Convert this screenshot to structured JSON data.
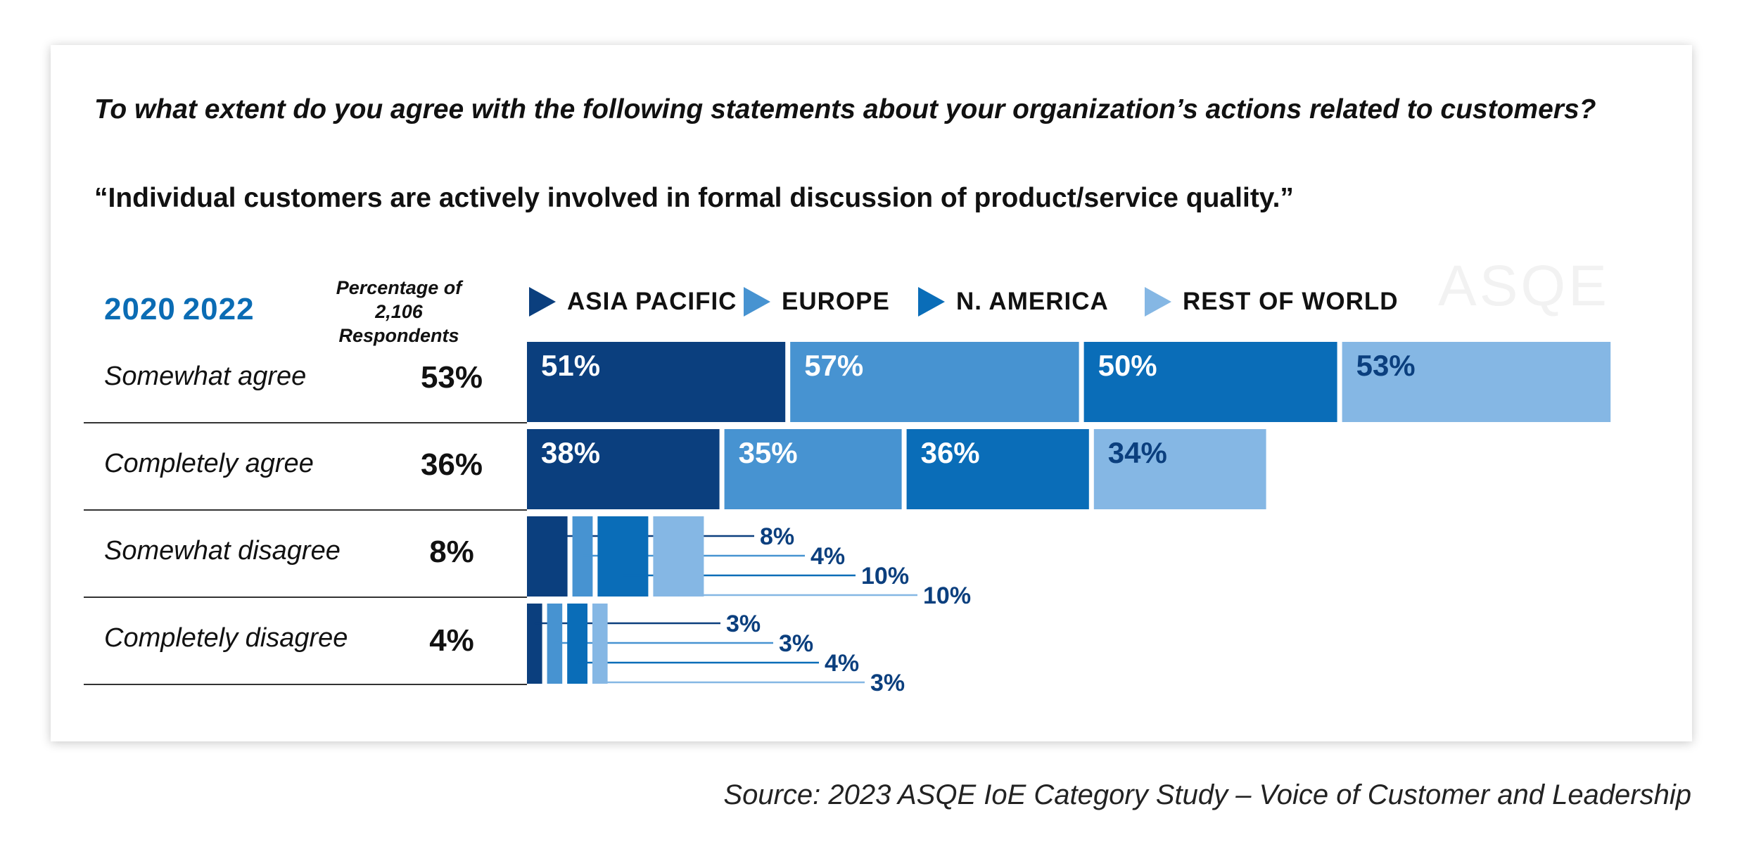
{
  "question": "To what extent do you agree with the following statements about your organization’s actions related to customers?",
  "statement": "“Individual customers are actively involved in formal discussion of product/service quality.”",
  "period_label": "2020 2022",
  "respondents_line1": "Percentage of",
  "respondents_line2": "2,106 Respondents",
  "watermark": "ASQE",
  "source": "Source: 2023 ASQE IoE Category Study – Voice of Customer and Leadership",
  "colors": {
    "asia_pacific": "#0b3f7e",
    "europe": "#4793d1",
    "n_america": "#0a6db8",
    "rest_of_world": "#85b7e4",
    "accent": "#0b6cb4"
  },
  "chart_data": {
    "type": "bar",
    "title": "To what extent do you agree with the following statements about your organization’s actions related to customers?",
    "subtitle": "“Individual customers are actively involved in formal discussion of product/service quality.”",
    "categories": [
      "Somewhat agree",
      "Completely agree",
      "Somewhat disagree",
      "Completely disagree"
    ],
    "totals": [
      "53%",
      "36%",
      "8%",
      "4%"
    ],
    "total_values": [
      53,
      36,
      8,
      4
    ],
    "series": [
      {
        "name": "ASIA PACIFIC",
        "values": [
          51,
          38,
          8,
          3
        ]
      },
      {
        "name": "EUROPE",
        "values": [
          57,
          35,
          4,
          3
        ]
      },
      {
        "name": "N. AMERICA",
        "values": [
          50,
          36,
          10,
          4
        ]
      },
      {
        "name": "REST OF WORLD",
        "values": [
          53,
          34,
          10,
          3
        ]
      }
    ],
    "xlabel": "",
    "ylabel": "",
    "grid": false,
    "legend": "top"
  }
}
